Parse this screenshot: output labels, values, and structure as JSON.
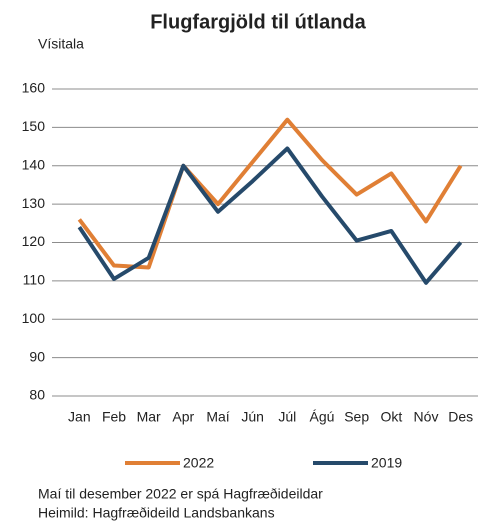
{
  "chart_data": {
    "type": "line",
    "title": "Flugfargjöld til útlanda",
    "y_label": "Vísitala",
    "categories": [
      "Jan",
      "Feb",
      "Mar",
      "Apr",
      "Maí",
      "Jún",
      "Júl",
      "Ágú",
      "Sep",
      "Okt",
      "Nóv",
      "Des"
    ],
    "series": [
      {
        "name": "2022",
        "color": "#e07f35",
        "values": [
          126,
          114,
          113.5,
          140,
          130,
          141,
          152,
          141.5,
          132.5,
          138,
          125.5,
          140
        ]
      },
      {
        "name": "2019",
        "color": "#264a6b",
        "values": [
          124,
          110.5,
          116,
          140,
          128,
          136,
          144.5,
          132,
          120.5,
          123,
          109.5,
          120
        ]
      }
    ],
    "ylim": [
      80,
      160
    ],
    "yticks": [
      80,
      90,
      100,
      110,
      120,
      130,
      140,
      150,
      160
    ],
    "grid": true,
    "legend": "bottom",
    "notes": [
      "Maí til desember 2022 er spá Hagfræðideildar",
      "Heimild: Hagfræðideild Landsbankans"
    ]
  }
}
